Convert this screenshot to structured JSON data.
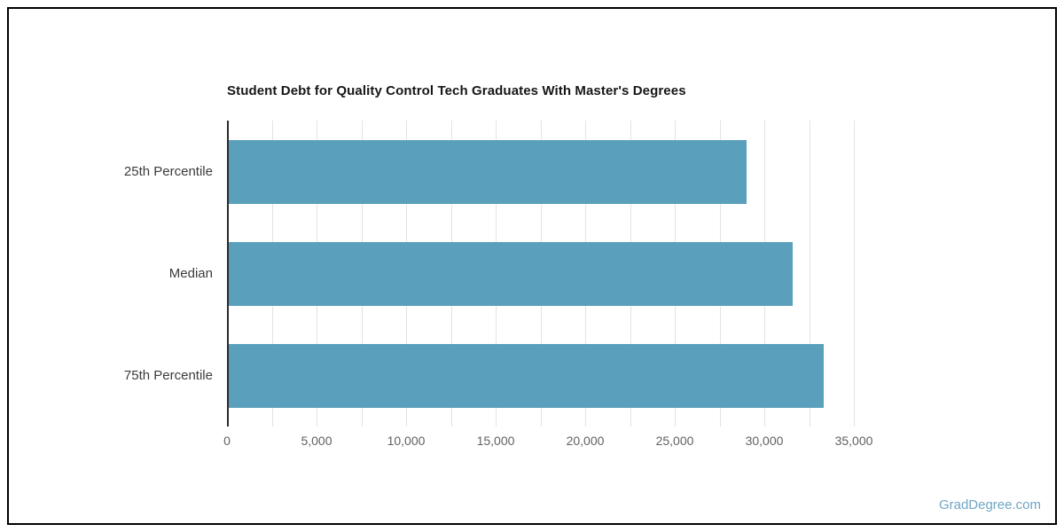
{
  "page": {
    "background_color": "#ffffff",
    "frame_border_color": "#000000"
  },
  "watermark": {
    "text": "GradDegree.com",
    "color": "#6fa6c5"
  },
  "chart_data": {
    "type": "bar",
    "orientation": "horizontal",
    "title": "Student Debt for Quality Control Tech Graduates With Master's Degrees",
    "categories": [
      "25th Percentile",
      "Median",
      "75th Percentile"
    ],
    "values": [
      28900,
      31500,
      33200
    ],
    "xlabel": "",
    "ylabel": "",
    "xlim": [
      0,
      35000
    ],
    "x_tick_step": 5000,
    "x_minor_gridline_step": 2500,
    "x_tick_labels": [
      "0",
      "5,000",
      "10,000",
      "15,000",
      "20,000",
      "25,000",
      "30,000",
      "35,000"
    ],
    "grid": "vertical-on",
    "legend": "none",
    "bar_color": "#5aa0bc",
    "gridline_color": "#e3e3e3",
    "axis_line_color": "#2b2b2b",
    "title_color": "#161616",
    "tick_label_color": "#616161",
    "category_label_color": "#3b3b3b"
  }
}
